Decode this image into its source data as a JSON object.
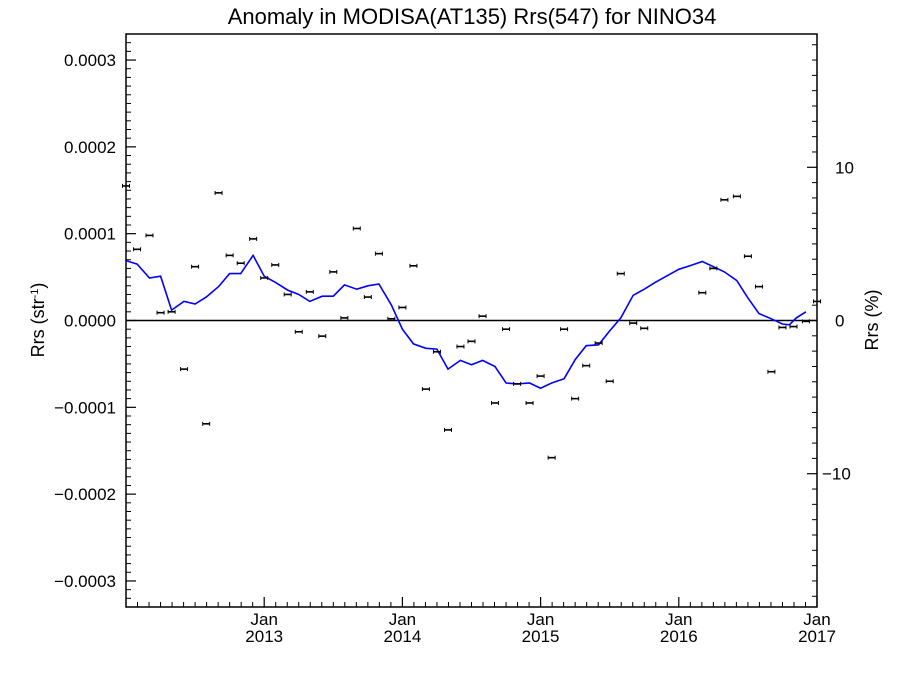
{
  "chart_data": {
    "type": "scatter",
    "title": "Anomaly in MODISA(AT135) Rrs(547) for NINO34",
    "ylabel_left": "Rrs (str",
    "ylabel_left_sup": "-1",
    "ylabel_left_close": ")",
    "ylabel_right": "Rrs (%)",
    "xlim": [
      2012.0,
      2017.0
    ],
    "ylim": [
      -0.00033,
      0.00033
    ],
    "y2lim": [
      -18.7,
      18.7
    ],
    "y_ticks": [
      {
        "value": 0.0003,
        "label": "0.0003"
      },
      {
        "value": 0.0002,
        "label": "0.0002"
      },
      {
        "value": 0.0001,
        "label": "0.0001"
      },
      {
        "value": 0.0,
        "label": "0.0000"
      },
      {
        "value": -0.0001,
        "label": "−0.0001"
      },
      {
        "value": -0.0002,
        "label": "−0.0002"
      },
      {
        "value": -0.0003,
        "label": "−0.0003"
      }
    ],
    "y2_ticks": [
      {
        "value": 10,
        "label": "10"
      },
      {
        "value": 0,
        "label": "0"
      },
      {
        "value": -10,
        "label": "−10"
      }
    ],
    "x_ticks": [
      {
        "value": 2013.0,
        "month": "Jan",
        "year": "2013"
      },
      {
        "value": 2014.0,
        "month": "Jan",
        "year": "2014"
      },
      {
        "value": 2015.0,
        "month": "Jan",
        "year": "2015"
      },
      {
        "value": 2016.0,
        "month": "Jan",
        "year": "2016"
      },
      {
        "value": 2017.0,
        "month": "Jan",
        "year": "2017"
      }
    ],
    "zero_line": 0.0,
    "series": [
      {
        "kind": "points_with_error_bars",
        "color": "#000000",
        "points": [
          [
            2012.0,
            0.000155
          ],
          [
            2012.08,
            8.2e-05
          ],
          [
            2012.17,
            9.8e-05
          ],
          [
            2012.25,
            9e-06
          ],
          [
            2012.33,
            1e-05
          ],
          [
            2012.42,
            -5.6e-05
          ],
          [
            2012.5,
            6.2e-05
          ],
          [
            2012.58,
            -0.000119
          ],
          [
            2012.67,
            0.000147
          ],
          [
            2012.75,
            7.5e-05
          ],
          [
            2012.83,
            6.6e-05
          ],
          [
            2012.92,
            9.4e-05
          ],
          [
            2013.0,
            4.9e-05
          ],
          [
            2013.08,
            6.4e-05
          ],
          [
            2013.17,
            3e-05
          ],
          [
            2013.25,
            -1.3e-05
          ],
          [
            2013.33,
            3.3e-05
          ],
          [
            2013.42,
            -1.8e-05
          ],
          [
            2013.5,
            5.6e-05
          ],
          [
            2013.58,
            3e-06
          ],
          [
            2013.67,
            0.000106
          ],
          [
            2013.75,
            2.7e-05
          ],
          [
            2013.83,
            7.7e-05
          ],
          [
            2013.92,
            2e-06
          ],
          [
            2014.0,
            1.5e-05
          ],
          [
            2014.08,
            6.3e-05
          ],
          [
            2014.17,
            -7.9e-05
          ],
          [
            2014.25,
            -3.6e-05
          ],
          [
            2014.33,
            -0.000126
          ],
          [
            2014.42,
            -3e-05
          ],
          [
            2014.5,
            -2.4e-05
          ],
          [
            2014.58,
            5e-06
          ],
          [
            2014.67,
            -9.5e-05
          ],
          [
            2014.75,
            -1e-05
          ],
          [
            2014.83,
            -7.3e-05
          ],
          [
            2014.92,
            -9.5e-05
          ],
          [
            2015.0,
            -6.4e-05
          ],
          [
            2015.08,
            -0.000158
          ],
          [
            2015.17,
            -1e-05
          ],
          [
            2015.25,
            -9e-05
          ],
          [
            2015.33,
            -5.2e-05
          ],
          [
            2015.42,
            -2.6e-05
          ],
          [
            2015.5,
            -7e-05
          ],
          [
            2015.58,
            5.4e-05
          ],
          [
            2015.67,
            -3e-06
          ],
          [
            2015.75,
            -9e-06
          ],
          [
            2016.17,
            3.2e-05
          ],
          [
            2016.25,
            6e-05
          ],
          [
            2016.33,
            0.000139
          ],
          [
            2016.42,
            0.000143
          ],
          [
            2016.5,
            7.4e-05
          ],
          [
            2016.58,
            3.9e-05
          ],
          [
            2016.67,
            -5.9e-05
          ],
          [
            2016.75,
            -8e-06
          ],
          [
            2016.83,
            -7e-06
          ],
          [
            2016.92,
            -1e-06
          ],
          [
            2017.0,
            2.2e-05
          ]
        ]
      },
      {
        "kind": "line",
        "color": "#0000ff",
        "points": [
          [
            2012.0,
            6.9e-05
          ],
          [
            2012.08,
            6.5e-05
          ],
          [
            2012.17,
            4.9e-05
          ],
          [
            2012.25,
            5.1e-05
          ],
          [
            2012.33,
            1.2e-05
          ],
          [
            2012.42,
            2.2e-05
          ],
          [
            2012.5,
            1.9e-05
          ],
          [
            2012.58,
            2.7e-05
          ],
          [
            2012.67,
            3.9e-05
          ],
          [
            2012.75,
            5.4e-05
          ],
          [
            2012.83,
            5.4e-05
          ],
          [
            2012.92,
            7.5e-05
          ],
          [
            2013.0,
            5.1e-05
          ],
          [
            2013.08,
            4.4e-05
          ],
          [
            2013.17,
            3.5e-05
          ],
          [
            2013.25,
            3e-05
          ],
          [
            2013.33,
            2.2e-05
          ],
          [
            2013.42,
            2.8e-05
          ],
          [
            2013.5,
            2.8e-05
          ],
          [
            2013.58,
            4.1e-05
          ],
          [
            2013.67,
            3.6e-05
          ],
          [
            2013.75,
            4e-05
          ],
          [
            2013.83,
            4.2e-05
          ],
          [
            2013.92,
            1.8e-05
          ],
          [
            2014.0,
            -1e-05
          ],
          [
            2014.08,
            -2.7e-05
          ],
          [
            2014.17,
            -3.2e-05
          ],
          [
            2014.25,
            -3.3e-05
          ],
          [
            2014.33,
            -5.6e-05
          ],
          [
            2014.42,
            -4.6e-05
          ],
          [
            2014.5,
            -5.1e-05
          ],
          [
            2014.58,
            -4.6e-05
          ],
          [
            2014.67,
            -5.3e-05
          ],
          [
            2014.75,
            -7.2e-05
          ],
          [
            2014.83,
            -7.3e-05
          ],
          [
            2014.92,
            -7.2e-05
          ],
          [
            2015.0,
            -7.8e-05
          ],
          [
            2015.08,
            -7.2e-05
          ],
          [
            2015.17,
            -6.7e-05
          ],
          [
            2015.25,
            -4.5e-05
          ],
          [
            2015.33,
            -2.9e-05
          ],
          [
            2015.42,
            -2.8e-05
          ],
          [
            2015.5,
            -1.2e-05
          ],
          [
            2015.58,
            3e-06
          ],
          [
            2015.67,
            2.9e-05
          ],
          [
            2015.75,
            3.6e-05
          ],
          [
            2015.83,
            4.4e-05
          ],
          [
            2015.92,
            5.2e-05
          ],
          [
            2016.0,
            5.9e-05
          ],
          [
            2016.08,
            6.3e-05
          ],
          [
            2016.17,
            6.8e-05
          ],
          [
            2016.25,
            6.2e-05
          ],
          [
            2016.33,
            5.6e-05
          ],
          [
            2016.42,
            4.6e-05
          ],
          [
            2016.5,
            2.6e-05
          ],
          [
            2016.58,
            8e-06
          ],
          [
            2016.67,
            2e-06
          ],
          [
            2016.75,
            -4e-06
          ],
          [
            2016.8,
            -5e-06
          ],
          [
            2016.85,
            3e-06
          ],
          [
            2016.92,
            1e-05
          ]
        ]
      }
    ]
  }
}
